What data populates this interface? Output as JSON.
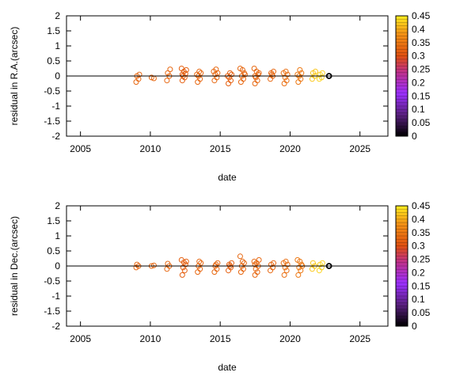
{
  "colorbar": {
    "ticks": [
      0,
      0.05,
      0.1,
      0.15,
      0.2,
      0.25,
      0.3,
      0.35,
      0.4,
      0.45
    ],
    "stops": [
      {
        "v": 0.0,
        "color": "#000000"
      },
      {
        "v": 0.08,
        "color": "#5a2080"
      },
      {
        "v": 0.16,
        "color": "#9b30ff"
      },
      {
        "v": 0.24,
        "color": "#c0308a"
      },
      {
        "v": 0.3,
        "color": "#e05010"
      },
      {
        "v": 0.38,
        "color": "#f39015"
      },
      {
        "v": 0.45,
        "color": "#ffee20"
      }
    ]
  },
  "chart_data": [
    {
      "type": "scatter",
      "name": "ra",
      "xlabel": "date",
      "ylabel": "residual in R.A.(arcsec)",
      "xlim": [
        2004,
        2027
      ],
      "ylim": [
        -2,
        2
      ],
      "xticks": [
        2005,
        2010,
        2015,
        2020,
        2025
      ],
      "yticks": [
        -2,
        -1.5,
        -1,
        -0.5,
        0,
        0.5,
        1,
        1.5,
        2
      ],
      "color_scale": [
        0,
        0.45
      ],
      "zero_line": true,
      "groups": [
        {
          "x": 2009.1,
          "y": [
            -0.2,
            -0.1,
            0.0,
            0.05
          ],
          "c": 0.33
        },
        {
          "x": 2010.2,
          "y": [
            -0.05,
            -0.08
          ],
          "c": 0.33
        },
        {
          "x": 2011.3,
          "y": [
            -0.15,
            0.0,
            0.1,
            0.22
          ],
          "c": 0.33
        },
        {
          "x": 2012.4,
          "y": [
            -0.15,
            -0.05,
            0.0,
            0.08,
            0.15,
            0.25,
            0.2,
            0.05
          ],
          "c": 0.32
        },
        {
          "x": 2013.5,
          "y": [
            -0.2,
            -0.1,
            0.0,
            0.1,
            0.15,
            0.05
          ],
          "c": 0.33
        },
        {
          "x": 2014.7,
          "y": [
            -0.15,
            -0.05,
            0.05,
            0.1,
            0.22,
            0.15
          ],
          "c": 0.33
        },
        {
          "x": 2015.7,
          "y": [
            -0.25,
            -0.15,
            -0.05,
            0.05,
            0.1,
            0.0
          ],
          "c": 0.32
        },
        {
          "x": 2016.6,
          "y": [
            -0.2,
            -0.1,
            0.0,
            0.1,
            0.2,
            0.25,
            0.05
          ],
          "c": 0.33
        },
        {
          "x": 2017.6,
          "y": [
            -0.25,
            -0.15,
            -0.05,
            0.05,
            0.15,
            0.25,
            0.1,
            0.0
          ],
          "c": 0.33
        },
        {
          "x": 2018.7,
          "y": [
            -0.1,
            0.0,
            0.1,
            0.15,
            0.05
          ],
          "c": 0.33
        },
        {
          "x": 2019.7,
          "y": [
            -0.25,
            -0.15,
            -0.05,
            0.05,
            0.15,
            0.1
          ],
          "c": 0.34
        },
        {
          "x": 2020.7,
          "y": [
            -0.2,
            -0.1,
            0.0,
            0.1,
            0.2,
            0.05
          ],
          "c": 0.35
        },
        {
          "x": 2021.7,
          "y": [
            -0.1,
            0.0,
            0.1,
            0.15
          ],
          "c": 0.42
        },
        {
          "x": 2022.2,
          "y": [
            -0.1,
            -0.05,
            0.05,
            0.1
          ],
          "c": 0.43
        },
        {
          "x": 2022.9,
          "y": [
            0.0
          ],
          "c": 0.0
        }
      ]
    },
    {
      "type": "scatter",
      "name": "dec",
      "xlabel": "date",
      "ylabel": "residual in Dec.(arcsec)",
      "xlim": [
        2004,
        2027
      ],
      "ylim": [
        -2,
        2
      ],
      "xticks": [
        2005,
        2010,
        2015,
        2020,
        2025
      ],
      "yticks": [
        -2,
        -1.5,
        -1,
        -0.5,
        0,
        0.5,
        1,
        1.5,
        2
      ],
      "color_scale": [
        0,
        0.45
      ],
      "zero_line": true,
      "groups": [
        {
          "x": 2009.1,
          "y": [
            -0.05,
            0.0,
            0.05
          ],
          "c": 0.33
        },
        {
          "x": 2010.2,
          "y": [
            0.0,
            0.02
          ],
          "c": 0.33
        },
        {
          "x": 2011.3,
          "y": [
            -0.1,
            0.0,
            0.08
          ],
          "c": 0.33
        },
        {
          "x": 2012.4,
          "y": [
            -0.3,
            -0.15,
            -0.05,
            0.05,
            0.12,
            0.2,
            0.15
          ],
          "c": 0.32
        },
        {
          "x": 2013.5,
          "y": [
            -0.2,
            -0.1,
            0.0,
            0.1,
            0.15
          ],
          "c": 0.33
        },
        {
          "x": 2014.7,
          "y": [
            -0.2,
            -0.1,
            0.0,
            0.1,
            0.05
          ],
          "c": 0.33
        },
        {
          "x": 2015.7,
          "y": [
            -0.15,
            -0.05,
            0.05,
            0.1,
            0.0
          ],
          "c": 0.32
        },
        {
          "x": 2016.6,
          "y": [
            -0.2,
            -0.1,
            0.0,
            0.1,
            0.15,
            0.32
          ],
          "c": 0.33
        },
        {
          "x": 2017.6,
          "y": [
            -0.3,
            -0.2,
            -0.1,
            0.0,
            0.1,
            0.15,
            0.2,
            0.05
          ],
          "c": 0.33
        },
        {
          "x": 2018.7,
          "y": [
            -0.15,
            -0.05,
            0.05,
            0.1
          ],
          "c": 0.33
        },
        {
          "x": 2019.7,
          "y": [
            -0.3,
            -0.15,
            -0.05,
            0.05,
            0.15,
            0.1
          ],
          "c": 0.34
        },
        {
          "x": 2020.7,
          "y": [
            -0.3,
            -0.15,
            -0.05,
            0.05,
            0.15,
            0.2,
            0.0
          ],
          "c": 0.35
        },
        {
          "x": 2021.7,
          "y": [
            -0.1,
            0.0,
            0.1
          ],
          "c": 0.42
        },
        {
          "x": 2022.2,
          "y": [
            -0.15,
            -0.05,
            0.05,
            0.1
          ],
          "c": 0.43
        },
        {
          "x": 2022.9,
          "y": [
            0.0
          ],
          "c": 0.0
        }
      ]
    }
  ]
}
